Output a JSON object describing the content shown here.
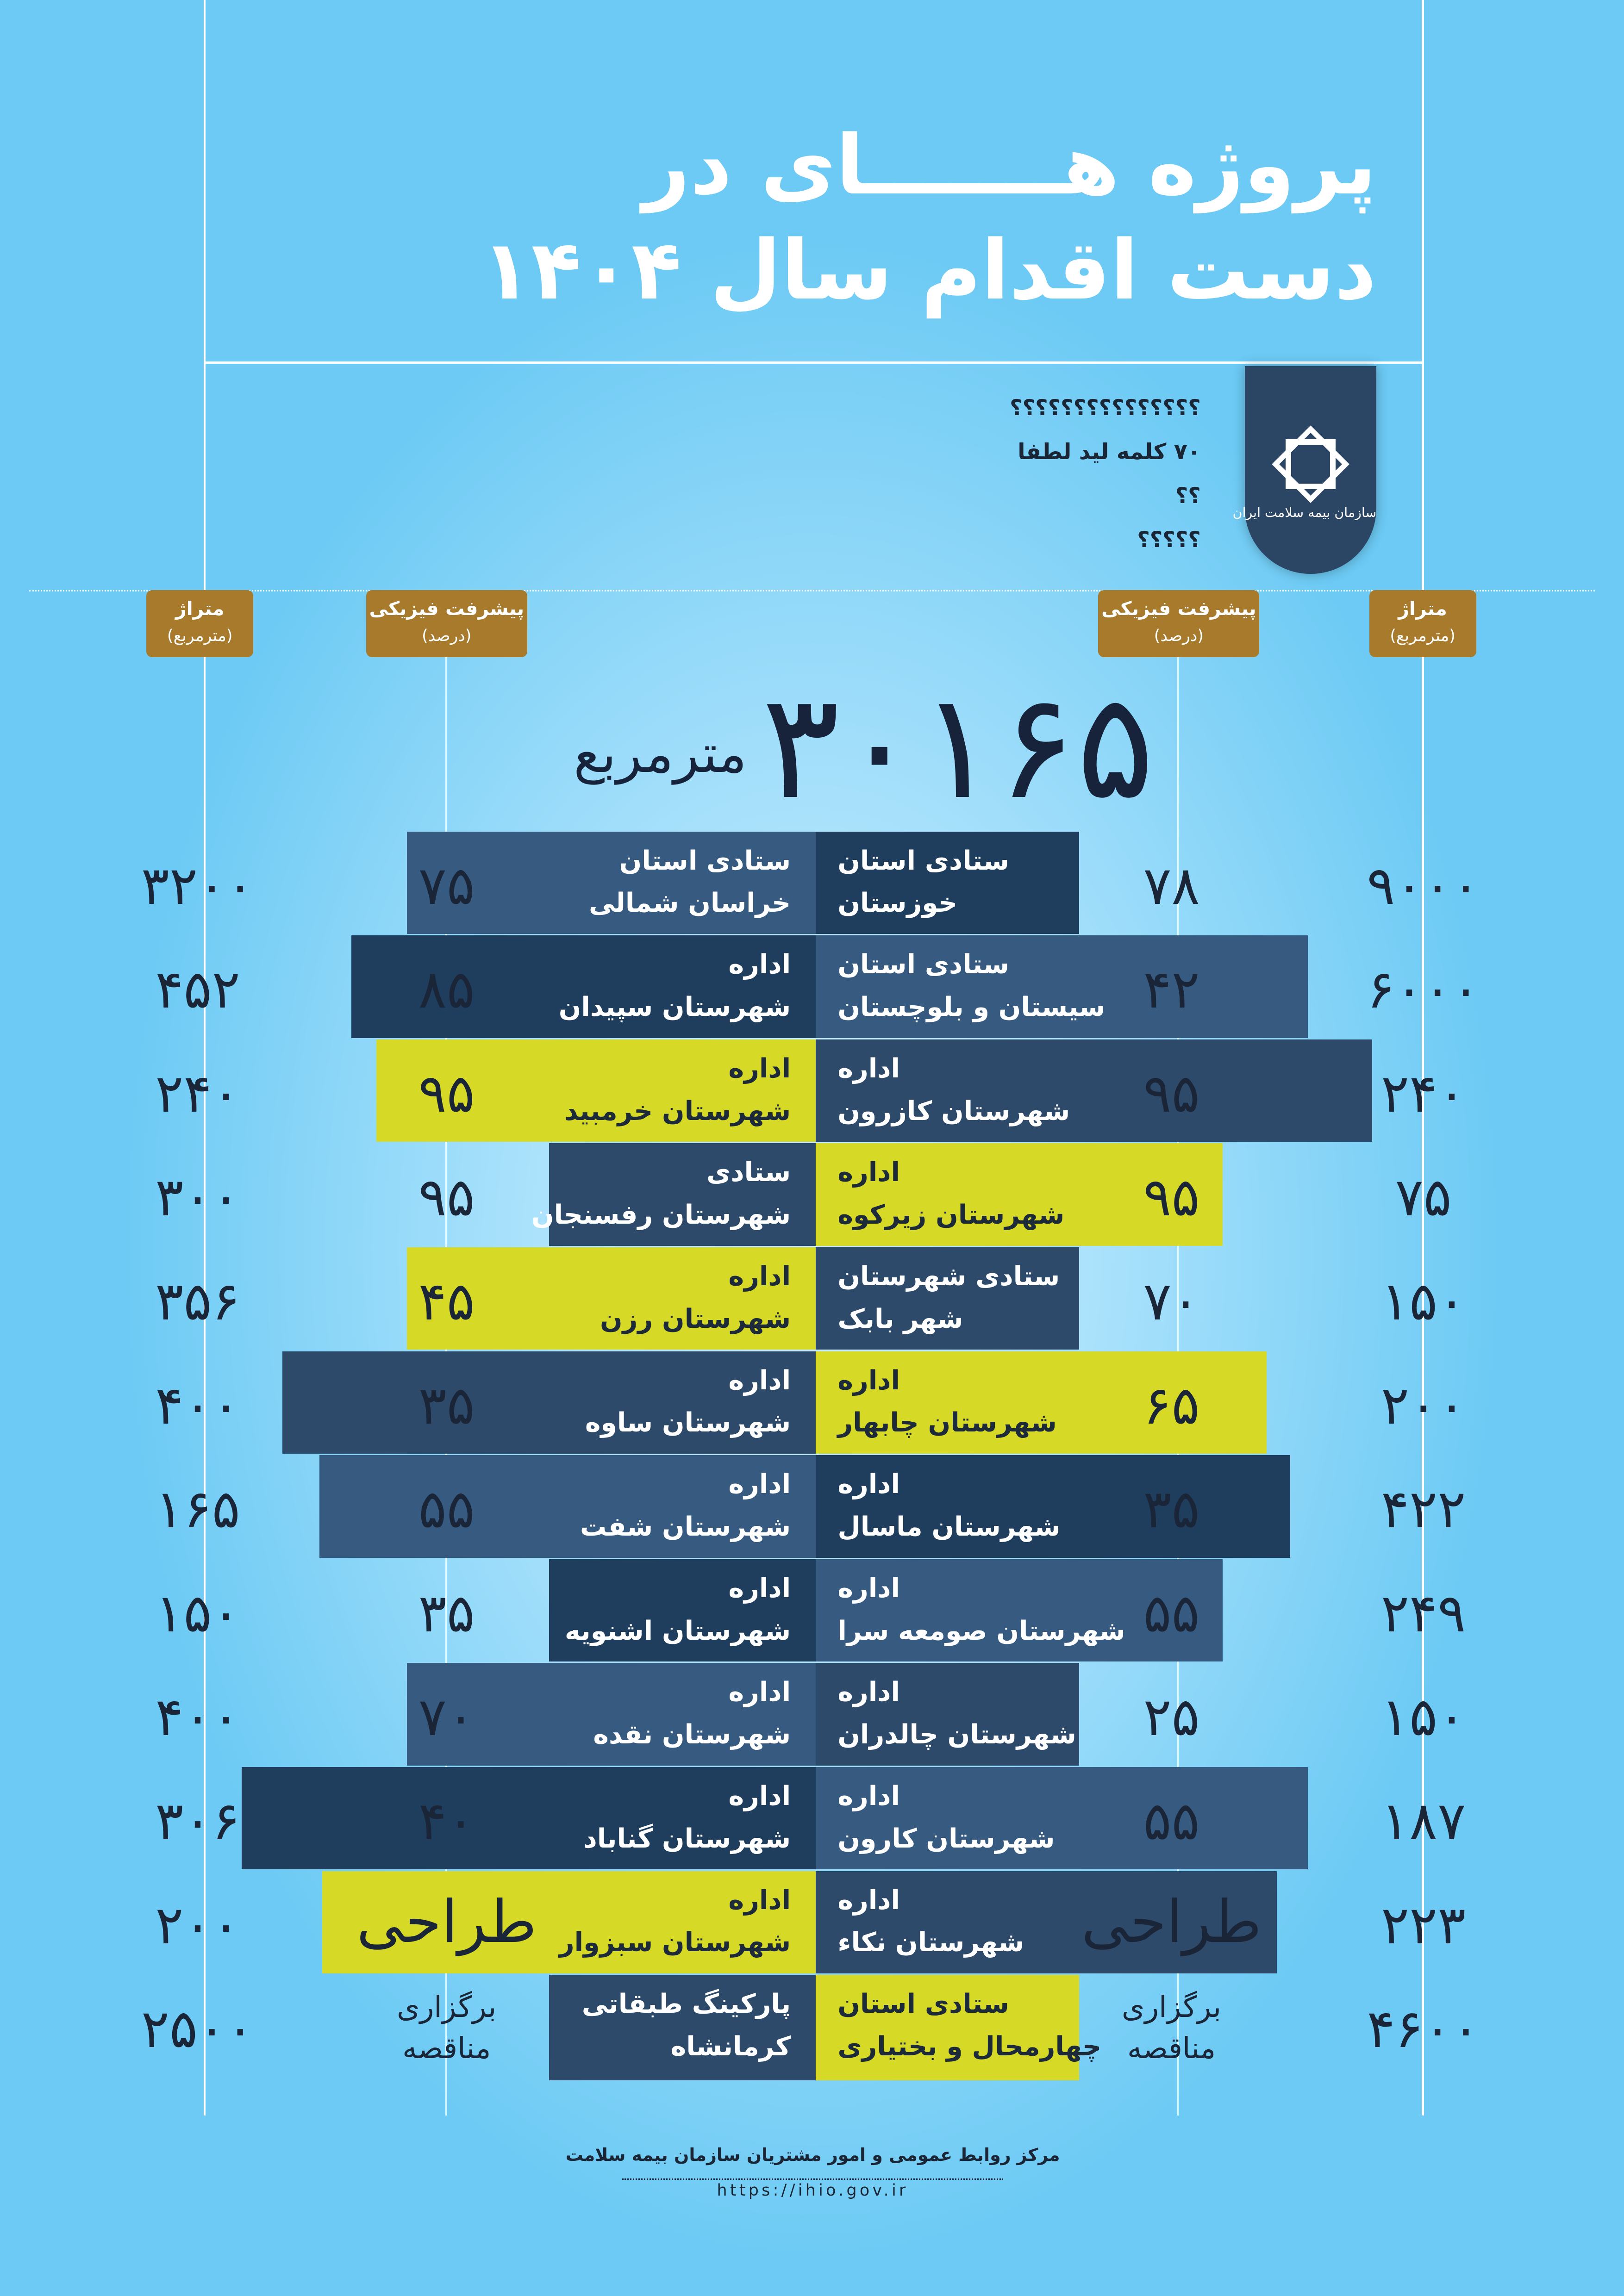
{
  "header": {
    "title_lines": [
      "پروژه هـــــــای در",
      "دست اقدام سال ۱۴۰۴"
    ]
  },
  "logo": {
    "text": "سازمان بیمه سلامت ایران"
  },
  "lead_lines": [
    "؟؟؟؟؟؟؟؟؟؟؟؟؟؟؟",
    "۷۰ کلمه لید لطفا",
    "؟؟",
    "؟؟؟؟؟"
  ],
  "column_headers": {
    "left_area": {
      "label": "متراژ",
      "unit": "(مترمربع)"
    },
    "left_progress": {
      "label": "پیشرفت فیزیکی",
      "unit": "(درصد)"
    },
    "right_progress": {
      "label": "پیشرفت فیزیکی",
      "unit": "(درصد)"
    },
    "right_area": {
      "label": "متراژ",
      "unit": "(مترمربع)"
    }
  },
  "total": {
    "value": "۳۰۱۶۵",
    "unit": "مترمربع"
  },
  "rows": [
    {
      "right": {
        "area": "۹۰۰۰",
        "progress_lines": [
          "۷۸"
        ],
        "name_lines": [
          "ستادی استان",
          "خوزستان"
        ]
      },
      "left": {
        "area": "۳۲۰۰",
        "progress_lines": [
          "۷۵"
        ],
        "name_lines": [
          "ستادی استان",
          "خراسان شمالی"
        ]
      }
    },
    {
      "right": {
        "area": "۶۰۰۰",
        "progress_lines": [
          "۴۲"
        ],
        "name_lines": [
          "ستادی استان",
          "سیستان و بلوچستان"
        ]
      },
      "left": {
        "area": "۴۵۲",
        "progress_lines": [
          "۸۵"
        ],
        "name_lines": [
          "اداره",
          "شهرستان سپیدان"
        ]
      }
    },
    {
      "right": {
        "area": "۲۴۰",
        "progress_lines": [
          "۹۵"
        ],
        "name_lines": [
          "اداره",
          "شهرستان کازرون"
        ]
      },
      "left": {
        "area": "۲۴۰",
        "progress_lines": [
          "۹۵"
        ],
        "name_lines": [
          "اداره",
          "شهرستان خرمبید"
        ]
      }
    },
    {
      "right": {
        "area": "۷۵",
        "progress_lines": [
          "۹۵"
        ],
        "name_lines": [
          "اداره",
          "شهرستان زیرکوه"
        ]
      },
      "left": {
        "area": "۳۰۰",
        "progress_lines": [
          "۹۵"
        ],
        "name_lines": [
          "ستادی",
          "شهرستان رفسنجان"
        ]
      }
    },
    {
      "right": {
        "area": "۱۵۰",
        "progress_lines": [
          "۷۰"
        ],
        "name_lines": [
          "ستادی شهرستان",
          "شهر بابک"
        ]
      },
      "left": {
        "area": "۳۵۶",
        "progress_lines": [
          "۴۵"
        ],
        "name_lines": [
          "اداره",
          "شهرستان رزن"
        ]
      }
    },
    {
      "right": {
        "area": "۲۰۰",
        "progress_lines": [
          "۶۵"
        ],
        "name_lines": [
          "اداره",
          "شهرستان چابهار"
        ]
      },
      "left": {
        "area": "۴۰۰",
        "progress_lines": [
          "۳۵"
        ],
        "name_lines": [
          "اداره",
          "شهرستان ساوه"
        ]
      }
    },
    {
      "right": {
        "area": "۴۲۲",
        "progress_lines": [
          "۳۵"
        ],
        "name_lines": [
          "اداره",
          "شهرستان ماسال"
        ]
      },
      "left": {
        "area": "۱۶۵",
        "progress_lines": [
          "۵۵"
        ],
        "name_lines": [
          "اداره",
          "شهرستان شفت"
        ]
      }
    },
    {
      "right": {
        "area": "۲۴۹",
        "progress_lines": [
          "۵۵"
        ],
        "name_lines": [
          "اداره",
          "شهرستان صومعه سرا"
        ]
      },
      "left": {
        "area": "۱۵۰",
        "progress_lines": [
          "۳۵"
        ],
        "name_lines": [
          "اداره",
          "شهرستان اشنویه"
        ]
      }
    },
    {
      "right": {
        "area": "۱۵۰",
        "progress_lines": [
          "۲۵"
        ],
        "name_lines": [
          "اداره",
          "شهرستان چالدران"
        ]
      },
      "left": {
        "area": "۴۰۰",
        "progress_lines": [
          "۷۰"
        ],
        "name_lines": [
          "اداره",
          "شهرستان نقده"
        ]
      }
    },
    {
      "right": {
        "area": "۱۸۷",
        "progress_lines": [
          "۵۵"
        ],
        "name_lines": [
          "اداره",
          "شهرستان کارون"
        ]
      },
      "left": {
        "area": "۳۰۶",
        "progress_lines": [
          "۴۰"
        ],
        "name_lines": [
          "اداره",
          "شهرستان گناباد"
        ]
      }
    },
    {
      "right": {
        "area": "۲۲۳",
        "progress_lines": [
          "طراحی"
        ],
        "name_lines": [
          "اداره",
          "شهرستان نکاء"
        ]
      },
      "left": {
        "area": "۲۰۰",
        "progress_lines": [
          "طراحی"
        ],
        "name_lines": [
          "اداره",
          "شهرستان سبزوار"
        ]
      }
    },
    {
      "right": {
        "area": "۴۶۰۰",
        "progress_lines": [
          "برگزاری",
          "مناقصه"
        ],
        "name_lines": [
          "ستادی استان",
          "چهارمحال و بختیاری"
        ]
      },
      "left": {
        "area": "۲۵۰۰",
        "progress_lines": [
          "برگزاری",
          "مناقصه"
        ],
        "name_lines": [
          "پارکینگ طبقاتی",
          "کرمانشاه"
        ]
      }
    }
  ],
  "footer": {
    "org": "مرکز روابط عمومی و امور مشتریان سازمان بیمه سلامت",
    "url": "https://ihio.gov.ir"
  }
}
